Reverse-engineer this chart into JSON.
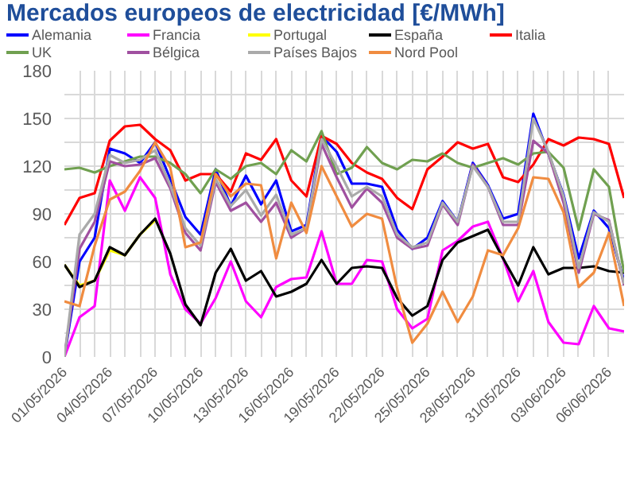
{
  "chart_data": {
    "type": "line",
    "title": "Mercados europeos de electricidad [€/MWh]",
    "x": [
      "2026-05-01",
      "2026-05-02",
      "2026-05-03",
      "2026-05-04",
      "2026-05-05",
      "2026-05-06",
      "2026-05-07",
      "2026-05-08",
      "2026-05-09",
      "2026-05-10",
      "2026-05-11",
      "2026-05-12",
      "2026-05-13",
      "2026-05-14",
      "2026-05-15",
      "2026-05-16",
      "2026-05-17",
      "2026-05-18",
      "2026-05-19",
      "2026-05-20",
      "2026-05-21",
      "2026-05-22",
      "2026-05-23",
      "2026-05-24",
      "2026-05-25",
      "2026-05-26",
      "2026-05-27",
      "2026-05-28",
      "2026-05-29",
      "2026-05-30",
      "2026-05-31",
      "2026-06-01",
      "2026-06-02",
      "2026-06-03",
      "2026-06-04",
      "2026-06-05",
      "2026-06-06",
      "2026-06-07"
    ],
    "series": [
      {
        "name": "Alemania",
        "color": "#0000ff",
        "values": [
          0,
          60,
          75,
          131,
          128,
          122,
          135,
          112,
          88,
          77,
          118,
          95,
          114,
          96,
          111,
          79,
          83,
          139,
          129,
          109,
          109,
          107,
          80,
          68,
          75,
          98,
          85,
          122,
          108,
          87,
          90,
          153,
          128,
          102,
          62,
          92,
          81,
          48
        ]
      },
      {
        "name": "Francia",
        "color": "#ff00ff",
        "values": [
          0,
          25,
          32,
          111,
          92,
          113,
          100,
          52,
          30,
          21,
          37,
          60,
          35,
          25,
          44,
          49,
          50,
          79,
          46,
          46,
          61,
          60,
          30,
          18,
          24,
          67,
          73,
          82,
          85,
          62,
          35,
          54,
          22,
          9,
          8,
          32,
          18,
          16
        ]
      },
      {
        "name": "Portugal",
        "color": "#ffff00",
        "values": [
          58,
          45,
          48,
          67,
          64,
          77,
          86,
          null,
          null,
          null,
          null,
          null,
          null,
          null,
          null,
          null,
          null,
          null,
          null,
          null,
          null,
          null,
          null,
          null,
          null,
          null,
          null,
          null,
          null,
          null,
          null,
          null,
          null,
          null,
          null,
          null,
          null,
          null
        ]
      },
      {
        "name": "España",
        "color": "#000000",
        "values": [
          58,
          44,
          48,
          69,
          64,
          77,
          87,
          65,
          33,
          20,
          53,
          68,
          48,
          54,
          38,
          41,
          46,
          61,
          46,
          56,
          57,
          56,
          37,
          26,
          32,
          61,
          72,
          76,
          80,
          62,
          45,
          69,
          52,
          56,
          56,
          57,
          54,
          53
        ]
      },
      {
        "name": "Italia",
        "color": "#ff0000",
        "values": [
          83,
          100,
          103,
          136,
          145,
          146,
          137,
          130,
          111,
          115,
          115,
          104,
          128,
          124,
          137,
          111,
          101,
          139,
          134,
          122,
          116,
          112,
          100,
          93,
          118,
          126,
          135,
          131,
          134,
          113,
          110,
          121,
          137,
          133,
          138,
          137,
          134,
          100
        ]
      },
      {
        "name": "UK",
        "color": "#70a050",
        "values": [
          118,
          119,
          116,
          120,
          123,
          126,
          126,
          122,
          115,
          103,
          118,
          112,
          120,
          122,
          115,
          130,
          123,
          142,
          115,
          119,
          132,
          122,
          118,
          124,
          123,
          128,
          122,
          119,
          122,
          125,
          121,
          128,
          129,
          119,
          80,
          118,
          107,
          53
        ]
      },
      {
        "name": "Bélgica",
        "color": "#a050a0",
        "values": [
          0,
          68,
          85,
          123,
          120,
          121,
          125,
          106,
          78,
          67,
          110,
          92,
          97,
          85,
          97,
          75,
          81,
          134,
          113,
          94,
          106,
          97,
          75,
          68,
          70,
          96,
          83,
          121,
          107,
          83,
          83,
          136,
          128,
          97,
          53,
          90,
          86,
          45
        ]
      },
      {
        "name": "Países Bajos",
        "color": "#aaaaaa",
        "values": [
          0,
          77,
          90,
          127,
          122,
          124,
          130,
          108,
          81,
          70,
          112,
          95,
          105,
          89,
          102,
          77,
          81,
          137,
          120,
          101,
          107,
          101,
          77,
          69,
          72,
          97,
          85,
          120,
          107,
          85,
          85,
          150,
          129,
          101,
          56,
          91,
          85,
          46
        ]
      },
      {
        "name": "Nord Pool",
        "color": "#f08c40",
        "values": [
          35,
          32,
          70,
          99,
          104,
          117,
          135,
          119,
          69,
          72,
          115,
          101,
          109,
          108,
          62,
          97,
          78,
          120,
          101,
          82,
          90,
          87,
          43,
          9,
          21,
          41,
          22,
          38,
          67,
          64,
          81,
          113,
          112,
          91,
          44,
          53,
          78,
          32
        ]
      }
    ],
    "xlim": [
      "2026-05-01",
      "2026-06-07"
    ],
    "xticks": [
      {
        "value": "2026-05-01",
        "label": "01/05/2026"
      },
      {
        "value": "2026-05-02",
        "label": null
      },
      {
        "value": "2026-05-03",
        "label": null
      },
      {
        "value": "2026-05-04",
        "label": "04/05/2026"
      },
      {
        "value": "2026-05-05",
        "label": null
      },
      {
        "value": "2026-05-06",
        "label": null
      },
      {
        "value": "2026-05-07",
        "label": "07/05/2026"
      },
      {
        "value": "2026-05-08",
        "label": null
      },
      {
        "value": "2026-05-09",
        "label": null
      },
      {
        "value": "2026-05-10",
        "label": "10/05/2026"
      },
      {
        "value": "2026-05-11",
        "label": null
      },
      {
        "value": "2026-05-12",
        "label": null
      },
      {
        "value": "2026-05-13",
        "label": "13/05/2026"
      },
      {
        "value": "2026-05-14",
        "label": null
      },
      {
        "value": "2026-05-15",
        "label": null
      },
      {
        "value": "2026-05-16",
        "label": "16/05/2026"
      },
      {
        "value": "2026-05-17",
        "label": null
      },
      {
        "value": "2026-05-18",
        "label": null
      },
      {
        "value": "2026-05-19",
        "label": "19/05/2026"
      },
      {
        "value": "2026-05-20",
        "label": null
      },
      {
        "value": "2026-05-21",
        "label": null
      },
      {
        "value": "2026-05-22",
        "label": "22/05/2026"
      },
      {
        "value": "2026-05-23",
        "label": null
      },
      {
        "value": "2026-05-24",
        "label": null
      },
      {
        "value": "2026-05-25",
        "label": "25/05/2026"
      },
      {
        "value": "2026-05-26",
        "label": null
      },
      {
        "value": "2026-05-27",
        "label": null
      },
      {
        "value": "2026-05-28",
        "label": "28/05/2026"
      },
      {
        "value": "2026-05-29",
        "label": null
      },
      {
        "value": "2026-05-30",
        "label": null
      },
      {
        "value": "2026-05-31",
        "label": "31/05/2026"
      },
      {
        "value": "2026-06-01",
        "label": null
      },
      {
        "value": "2026-06-02",
        "label": null
      },
      {
        "value": "2026-06-03",
        "label": "03/06/2026"
      },
      {
        "value": "2026-06-04",
        "label": null
      },
      {
        "value": "2026-06-05",
        "label": null
      },
      {
        "value": "2026-06-06",
        "label": "06/06/2026"
      }
    ],
    "ylim": [
      0,
      180
    ],
    "yticks": [
      0,
      {
        "value": 15,
        "label": null
      },
      30,
      {
        "value": 45,
        "label": null
      },
      60,
      {
        "value": 75,
        "label": null
      },
      90,
      {
        "value": 105,
        "label": null
      },
      120,
      {
        "value": 135,
        "label": null
      },
      150,
      {
        "value": 165,
        "label": null
      },
      180
    ],
    "grid": true,
    "legend": "top",
    "line_style": "solid"
  }
}
